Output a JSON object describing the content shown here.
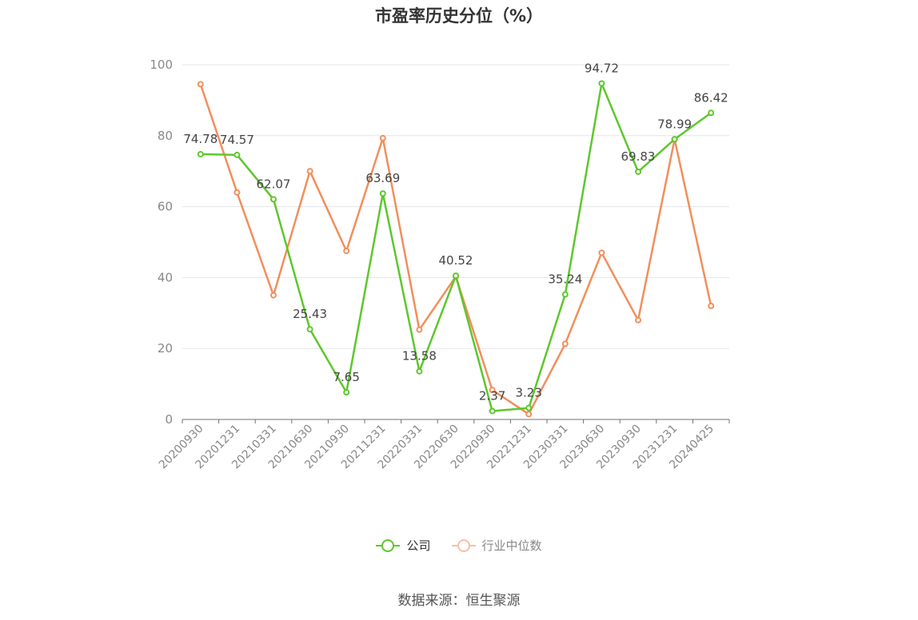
{
  "title": "市盈率历史分位（%）",
  "source": "数据来源：恒生聚源",
  "chart_data": {
    "type": "line",
    "title": "市盈率历史分位（%）",
    "categories": [
      "20200930",
      "20201231",
      "20210331",
      "20210630",
      "20210930",
      "20211231",
      "20220331",
      "20220630",
      "20220930",
      "20221231",
      "20230331",
      "20230630",
      "20230930",
      "20231231",
      "20240425"
    ],
    "ylim": [
      0,
      100
    ],
    "yticks": [
      0,
      20,
      40,
      60,
      80,
      100
    ],
    "grid": true,
    "legend_position": "bottom",
    "series": [
      {
        "name": "公司",
        "color": "#5dc72c",
        "values": [
          74.78,
          74.57,
          62.07,
          25.43,
          7.65,
          63.69,
          13.58,
          40.52,
          2.37,
          3.23,
          35.24,
          94.72,
          69.83,
          78.99,
          86.42
        ],
        "labels": [
          "74.78",
          "74.57",
          "62.07",
          "25.43",
          "7.65",
          "63.69",
          "13.58",
          "40.52",
          "2.37",
          "3.23",
          "35.24",
          "94.72",
          "69.83",
          "78.99",
          "86.42"
        ]
      },
      {
        "name": "行业中位数",
        "color": "#f28e5c",
        "values": [
          94.5,
          64.0,
          35.0,
          70.0,
          47.5,
          79.3,
          25.3,
          40.3,
          8.3,
          1.5,
          21.3,
          47.0,
          28.0,
          79.0,
          32.0
        ]
      }
    ]
  }
}
